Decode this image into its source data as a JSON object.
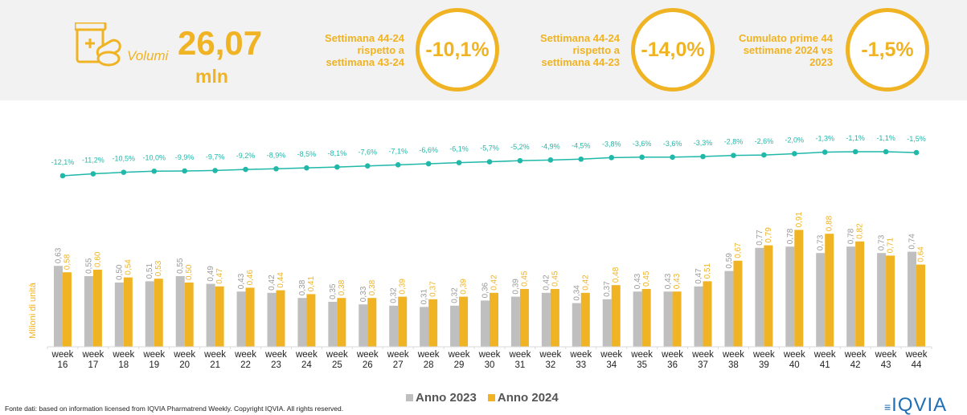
{
  "kpis": {
    "volume": {
      "label": "Volumi",
      "value": "26,07",
      "unit": "mln"
    },
    "cards": [
      {
        "text": "Settimana 44-24 rispetto a settimana 43-24",
        "value": "-10,1%"
      },
      {
        "text": "Settimana 44-24 rispetto a settimana 44-23",
        "value": "-14,0%"
      },
      {
        "text": "Cumulato prime 44 settimane 2024 vs 2023",
        "value": "-1,5%"
      }
    ]
  },
  "chart_data": {
    "type": "bar",
    "y_label": "Milioni di unità",
    "categories": [
      "week 16",
      "week 17",
      "week 18",
      "week 19",
      "week 20",
      "week 21",
      "week 22",
      "week 23",
      "week 24",
      "week 25",
      "week 26",
      "week 27",
      "week 28",
      "week 29",
      "week 30",
      "week 31",
      "week 32",
      "week 33",
      "week 34",
      "week 35",
      "week 36",
      "week 37",
      "week 38",
      "week 39",
      "week 40",
      "week 41",
      "week 42",
      "week 43",
      "week 44"
    ],
    "ylim": [
      0,
      1
    ],
    "y2lim": [
      -40,
      0
    ],
    "series": [
      {
        "name": "Anno 2023",
        "type": "bar",
        "color": "#bfbfbf",
        "values": [
          0.63,
          0.55,
          0.5,
          0.51,
          0.55,
          0.49,
          0.43,
          0.42,
          0.38,
          0.35,
          0.33,
          0.32,
          0.31,
          0.32,
          0.36,
          0.39,
          0.42,
          0.34,
          0.37,
          0.43,
          0.43,
          0.47,
          0.59,
          0.77,
          0.78,
          0.73,
          0.78,
          0.73,
          0.74
        ],
        "value_labels": [
          "0,63",
          "0,55",
          "0,50",
          "0,51",
          "0,55",
          "0,49",
          "0,43",
          "0,42",
          "0,38",
          "0,35",
          "0,33",
          "0,32",
          "0,31",
          "0,32",
          "0,36",
          "0,39",
          "0,42",
          "0,34",
          "0,37",
          "0,43",
          "0,43",
          "0,47",
          "0,59",
          "0,77",
          "0,78",
          "0,73",
          "0,78",
          "0,73",
          "0,74"
        ]
      },
      {
        "name": "Anno 2024",
        "type": "bar",
        "color": "#f0b323",
        "values": [
          0.58,
          0.6,
          0.54,
          0.53,
          0.5,
          0.47,
          0.46,
          0.44,
          0.41,
          0.38,
          0.38,
          0.39,
          0.37,
          0.39,
          0.42,
          0.45,
          0.45,
          0.42,
          0.48,
          0.45,
          0.43,
          0.51,
          0.67,
          0.79,
          0.91,
          0.88,
          0.82,
          0.71,
          0.64
        ],
        "value_labels": [
          "0,58",
          "0,60",
          "0,54",
          "0,53",
          "0,50",
          "0,47",
          "0,46",
          "0,44",
          "0,41",
          "0,38",
          "0,38",
          "0,39",
          "0,37",
          "0,39",
          "0,42",
          "0,45",
          "0,45",
          "0,42",
          "0,48",
          "0,45",
          "0,43",
          "0,51",
          "0,67",
          "0,79",
          "0,91",
          "0,88",
          "0,82",
          "0,71",
          "0,64"
        ]
      },
      {
        "type": "line",
        "axis": "y2",
        "color": "#1fb8a9",
        "values": [
          -12.1,
          -11.2,
          -10.5,
          -10.0,
          -9.9,
          -9.7,
          -9.2,
          -8.9,
          -8.5,
          -8.1,
          -7.6,
          -7.1,
          -6.6,
          -6.1,
          -5.7,
          -5.2,
          -4.9,
          -4.5,
          -3.8,
          -3.6,
          -3.6,
          -3.3,
          -2.8,
          -2.6,
          -2.0,
          -1.3,
          -1.1,
          -1.1,
          -1.5
        ],
        "value_labels": [
          "-12,1%",
          "-11,2%",
          "-10,5%",
          "-10,0%",
          "-9,9%",
          "-9,7%",
          "-9,2%",
          "-8,9%",
          "-8,5%",
          "-8,1%",
          "-7,6%",
          "-7,1%",
          "-6,6%",
          "-6,1%",
          "-5,7%",
          "-5,2%",
          "-4,9%",
          "-4,5%",
          "-3,8%",
          "-3,6%",
          "-3,6%",
          "-3,3%",
          "-2,8%",
          "-2,6%",
          "-2,0%",
          "-1,3%",
          "-1,1%",
          "-1,1%",
          "-1,5%"
        ]
      }
    ]
  },
  "source": "Fonte dati: based on information licensed from IQVIA Pharmatrend Weekly. Copyright IQVIA. All rights reserved.",
  "logo": "IQVIA"
}
